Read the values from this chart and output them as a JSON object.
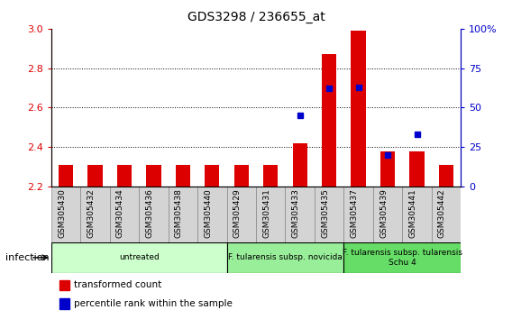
{
  "title": "GDS3298 / 236655_at",
  "samples": [
    "GSM305430",
    "GSM305432",
    "GSM305434",
    "GSM305436",
    "GSM305438",
    "GSM305440",
    "GSM305429",
    "GSM305431",
    "GSM305433",
    "GSM305435",
    "GSM305437",
    "GSM305439",
    "GSM305441",
    "GSM305442"
  ],
  "bar_values": [
    2.31,
    2.31,
    2.31,
    2.31,
    2.31,
    2.31,
    2.31,
    2.31,
    2.42,
    2.87,
    2.99,
    2.38,
    2.38,
    2.31
  ],
  "bar_base": 2.2,
  "dot_values": [
    null,
    null,
    null,
    null,
    null,
    null,
    null,
    null,
    45,
    62,
    63,
    20,
    33,
    null
  ],
  "ylim_left": [
    2.2,
    3.0
  ],
  "ylim_right": [
    0,
    100
  ],
  "yticks_left": [
    2.2,
    2.4,
    2.6,
    2.8,
    3.0
  ],
  "yticks_right": [
    0,
    25,
    50,
    75,
    100
  ],
  "bar_color": "#dd0000",
  "dot_color": "#0000cc",
  "group_info": [
    {
      "start": 0,
      "end": 5,
      "color": "#ccffcc",
      "label": "untreated"
    },
    {
      "start": 6,
      "end": 9,
      "color": "#99ee99",
      "label": "F. tularensis subsp. novicida"
    },
    {
      "start": 10,
      "end": 13,
      "color": "#66dd66",
      "label": "F. tularensis subsp. tularensis\nSchu 4"
    }
  ],
  "infection_label": "infection",
  "legend_bar_label": "transformed count",
  "legend_dot_label": "percentile rank within the sample",
  "bar_width": 0.5,
  "grid_yticks": [
    2.4,
    2.6,
    2.8
  ],
  "sample_box_color": "#d4d4d4",
  "title_fontsize": 10,
  "axis_fontsize": 8,
  "label_fontsize": 6.5,
  "group_fontsize": 6.5,
  "legend_fontsize": 7.5
}
